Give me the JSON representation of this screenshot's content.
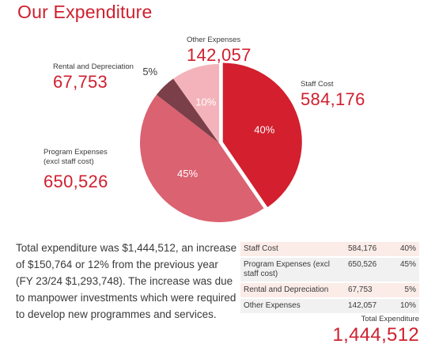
{
  "title": "Our Expenditure",
  "chart_data": {
    "type": "pie",
    "title": "Our Expenditure",
    "slices": [
      {
        "label": "Staff Cost",
        "value": 584176,
        "pct_label": "40%",
        "color": "#d31f2e",
        "pct_color": "light",
        "exploded": true
      },
      {
        "label": "Program Expenses (excl staff cost)",
        "value": 650526,
        "pct_label": "45%",
        "color": "#db6271",
        "pct_color": "light",
        "exploded": false
      },
      {
        "label": "Rental and Depreciation",
        "value": 67753,
        "pct_label": "5%",
        "color": "#7a3f48",
        "pct_color": "dark",
        "exploded": false
      },
      {
        "label": "Other Expenses",
        "value": 142057,
        "pct_label": "10%",
        "color": "#f4b3ba",
        "pct_color": "light",
        "exploded": false
      }
    ]
  },
  "callouts": {
    "staff": {
      "label": "Staff Cost",
      "value": "584,176"
    },
    "program": {
      "label_line1": "Program Expenses",
      "label_line2": "(excl staff cost)",
      "value": "650,526"
    },
    "rental": {
      "label": "Rental and Depreciation",
      "value": "67,753"
    },
    "other": {
      "label": "Other Expenses",
      "value": "142,057"
    }
  },
  "summary": "Total expenditure was $1,444,512, an increase of $150,764 or 12% from the previous year (FY 23/24 $1,293,748). The increase was due to manpower investments which were required to develop new programmes and services.",
  "table": {
    "rows": [
      {
        "label": "Staff Cost",
        "value": "584,176",
        "pct": "40%"
      },
      {
        "label": "Program Expenses (excl staff cost)",
        "value": "650,526",
        "pct": "45%"
      },
      {
        "label": "Rental and Depreciation",
        "value": "67,753",
        "pct": "5%"
      },
      {
        "label": "Other Expenses",
        "value": "142,057",
        "pct": "10%"
      }
    ]
  },
  "total": {
    "label": "Total Expenditure",
    "value": "1,444,512"
  }
}
